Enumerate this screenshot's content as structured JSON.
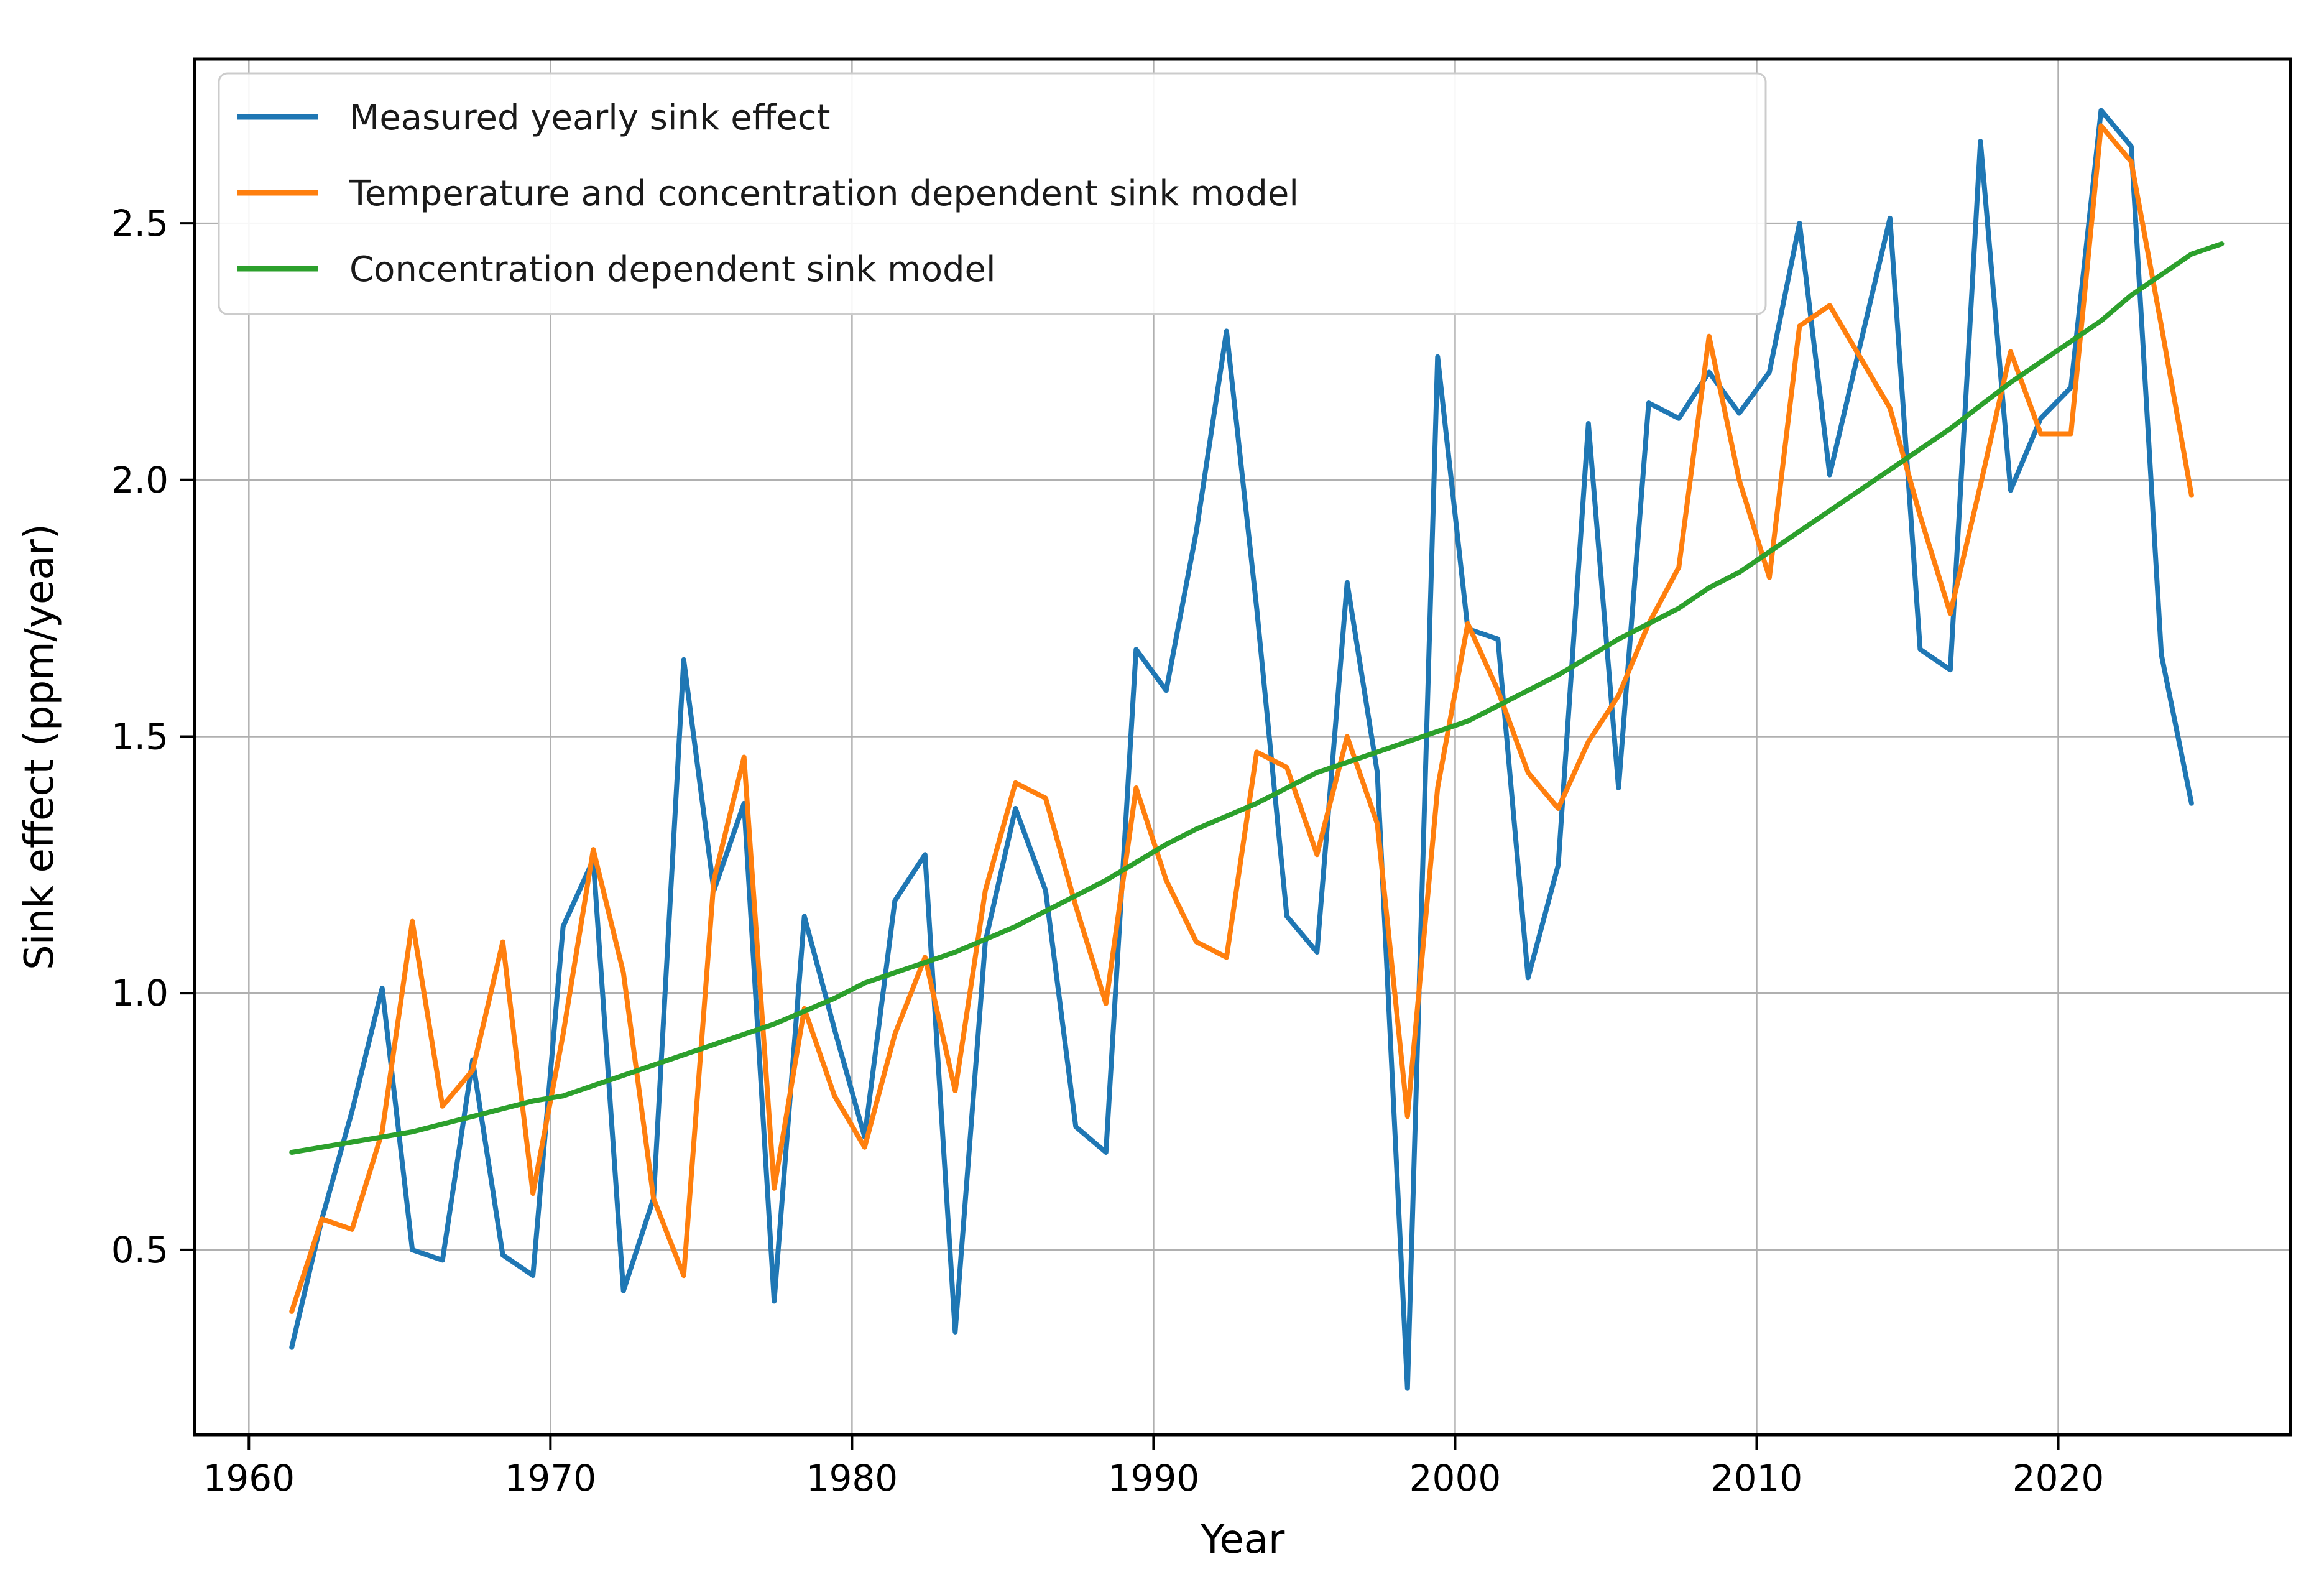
{
  "figure": {
    "background": "#ffffff",
    "xlabel": "Year",
    "ylabel": "Sink effect (ppm/year)"
  },
  "legend": {
    "entries": [
      {
        "label": "Measured yearly sink effect",
        "color": "#1f77b4"
      },
      {
        "label": "Temperature and concentration dependent sink model",
        "color": "#ff7f0e"
      },
      {
        "label": "Concentration dependent sink model",
        "color": "#2ca02c"
      }
    ],
    "border_color": "#cccccc",
    "background": "#ffffff"
  },
  "chart_data": {
    "type": "line",
    "title": "",
    "xlabel": "Year",
    "ylabel": "Sink effect (ppm/year)",
    "xlim": [
      1958.2,
      2027.7
    ],
    "ylim": [
      0.14,
      2.82
    ],
    "grid": true,
    "grid_color": "#b0b0b0",
    "x_ticks": [
      1960,
      1970,
      1980,
      1990,
      2000,
      2010,
      2020
    ],
    "x_tick_labels": [
      "1960",
      "1970",
      "1980",
      "1990",
      "2000",
      "2010",
      "2020"
    ],
    "y_ticks": [
      0.5,
      1.0,
      1.5,
      2.0,
      2.5
    ],
    "y_tick_labels": [
      "0.5",
      "1.0",
      "1.5",
      "2.0",
      "2.5"
    ],
    "legend_position": "upper left",
    "series": [
      {
        "name": "Measured yearly sink effect",
        "color": "#1f77b4",
        "x_start": 1961,
        "values": [
          0.31,
          0.56,
          0.77,
          1.01,
          0.5,
          0.48,
          0.87,
          0.49,
          0.45,
          1.13,
          1.26,
          0.42,
          0.6,
          1.65,
          1.2,
          1.37,
          0.4,
          1.15,
          0.93,
          0.72,
          1.18,
          1.27,
          0.34,
          1.1,
          1.36,
          1.2,
          0.74,
          0.69,
          1.67,
          1.59,
          1.9,
          2.29,
          1.75,
          1.15,
          1.08,
          1.8,
          1.43,
          0.23,
          2.24,
          1.71,
          1.69,
          1.03,
          1.25,
          2.11,
          1.4,
          2.15,
          2.12,
          2.21,
          2.13,
          2.21,
          2.5,
          2.01,
          2.26,
          2.51,
          1.67,
          1.63,
          2.66,
          1.98,
          2.12,
          2.18,
          2.72,
          2.65,
          1.66,
          1.37
        ]
      },
      {
        "name": "Temperature and concentration dependent sink model",
        "color": "#ff7f0e",
        "x_start": 1961,
        "values": [
          0.38,
          0.56,
          0.54,
          0.73,
          1.14,
          0.78,
          0.85,
          1.1,
          0.61,
          0.92,
          1.28,
          1.04,
          0.6,
          0.45,
          1.22,
          1.46,
          0.62,
          0.97,
          0.8,
          0.7,
          0.92,
          1.07,
          0.81,
          1.2,
          1.41,
          1.38,
          1.17,
          0.98,
          1.4,
          1.22,
          1.1,
          1.07,
          1.47,
          1.44,
          1.27,
          1.5,
          1.33,
          0.76,
          1.4,
          1.72,
          1.59,
          1.43,
          1.36,
          1.49,
          1.58,
          1.72,
          1.83,
          2.28,
          2.0,
          1.81,
          2.3,
          2.34,
          2.24,
          2.14,
          1.93,
          1.74,
          1.99,
          2.25,
          2.09,
          2.09,
          2.69,
          2.62,
          2.3,
          1.97
        ]
      },
      {
        "name": "Concentration dependent sink model",
        "color": "#2ca02c",
        "x_start": 1961,
        "values": [
          0.69,
          0.7,
          0.71,
          0.72,
          0.73,
          0.745,
          0.76,
          0.775,
          0.79,
          0.8,
          0.82,
          0.84,
          0.86,
          0.88,
          0.9,
          0.92,
          0.94,
          0.965,
          0.99,
          1.02,
          1.04,
          1.06,
          1.08,
          1.105,
          1.13,
          1.16,
          1.19,
          1.22,
          1.255,
          1.29,
          1.32,
          1.345,
          1.37,
          1.4,
          1.43,
          1.45,
          1.47,
          1.49,
          1.51,
          1.53,
          1.56,
          1.59,
          1.62,
          1.655,
          1.69,
          1.72,
          1.75,
          1.79,
          1.82,
          1.86,
          1.9,
          1.94,
          1.98,
          2.02,
          2.06,
          2.1,
          2.145,
          2.19,
          2.23,
          2.27,
          2.31,
          2.36,
          2.4,
          2.44,
          2.46
        ]
      }
    ]
  }
}
